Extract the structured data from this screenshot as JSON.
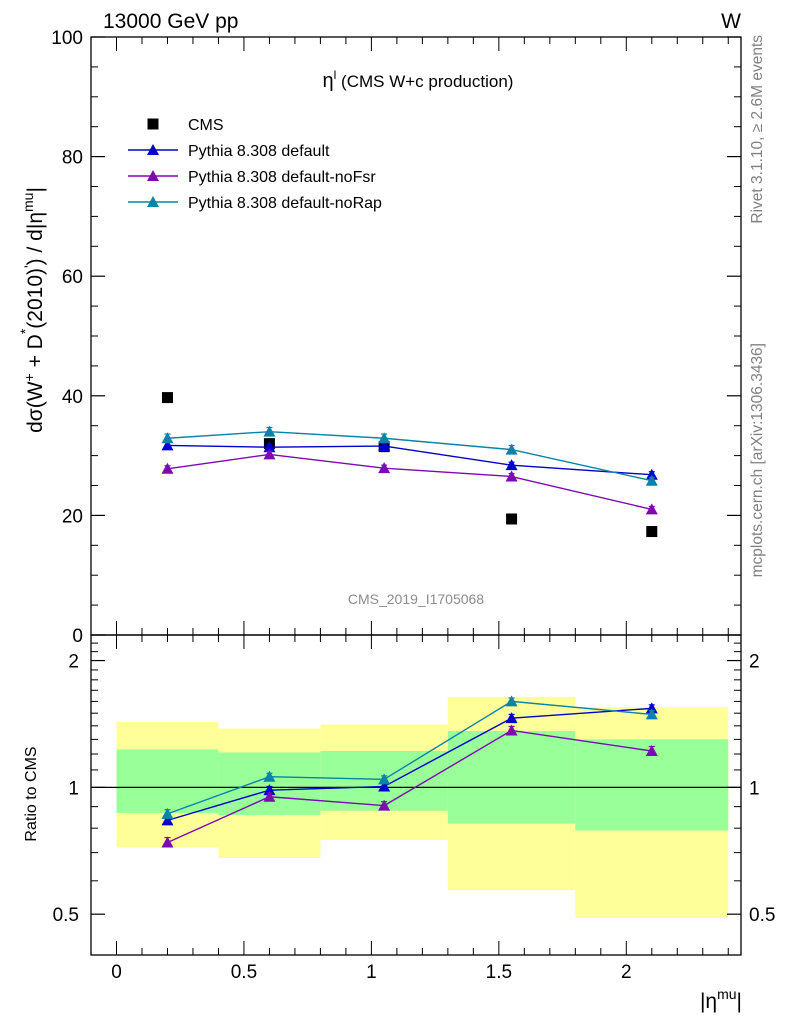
{
  "header": {
    "left": "13000 GeV pp",
    "right": "W"
  },
  "side_labels": {
    "rivet": "Rivet 3.1.10, ≥ 2.6M events",
    "mcplots": "mcplots.cern.ch [arXiv:1306.3436]"
  },
  "main_panel": {
    "title_symbol": "η",
    "title_sup": "l",
    "title_text": " (CMS W+c production)",
    "watermark": "CMS_2019_I1705068",
    "ylabel_d": "d",
    "ylabel_sigma": "σ(W",
    "ylabel_plus": "+",
    "ylabel_mid": " + D",
    "ylabel_star": "*",
    "ylabel_rest": "(2010)",
    "ylabel_end": ") / d|η",
    "ylabel_mu": "mu",
    "ylabel_bar": "|"
  },
  "ratio_panel": {
    "ylabel": "Ratio to CMS"
  },
  "x_axis": {
    "label_main": "|η",
    "label_sup": "mu",
    "label_end": "|"
  },
  "colors": {
    "data": "#000000",
    "default": "#0000cc",
    "noFsr": "#7b0ab4",
    "noRap": "#0a82aa",
    "band_outer": "#ffff99",
    "band_inner": "#99ff99"
  },
  "chart_data": [
    {
      "type": "scatter",
      "panel": "main",
      "xlim": [
        -0.1,
        2.45
      ],
      "ylim": [
        0,
        100
      ],
      "yticks": [
        0,
        20,
        40,
        60,
        80,
        100
      ],
      "legend": "top-left",
      "series": [
        {
          "name": "CMS",
          "style": "data",
          "x": [
            0.2,
            0.6,
            1.05,
            1.55,
            2.1
          ],
          "y": [
            39.7,
            32.0,
            31.5,
            19.4,
            17.3
          ],
          "err": [
            0,
            0,
            0,
            0,
            0
          ]
        },
        {
          "name": "Pythia 8.308 default",
          "style": "default",
          "x": [
            0.2,
            0.6,
            1.05,
            1.55,
            2.1
          ],
          "y": [
            31.7,
            31.4,
            31.6,
            28.4,
            26.8
          ],
          "err": [
            0.5,
            0.5,
            0.5,
            0.5,
            0.5
          ]
        },
        {
          "name": "Pythia 8.308 default-noFsr",
          "style": "noFsr",
          "x": [
            0.2,
            0.6,
            1.05,
            1.55,
            2.1
          ],
          "y": [
            27.8,
            30.2,
            27.9,
            26.5,
            21.0
          ],
          "err": [
            0.5,
            0.5,
            0.5,
            0.5,
            0.5
          ]
        },
        {
          "name": "Pythia 8.308 default-noRap",
          "style": "noRap",
          "x": [
            0.2,
            0.6,
            1.05,
            1.55,
            2.1
          ],
          "y": [
            32.9,
            34.0,
            32.9,
            31.0,
            25.8
          ],
          "err": [
            0.7,
            0.7,
            0.7,
            0.7,
            0.5
          ]
        }
      ]
    },
    {
      "type": "line",
      "panel": "ratio",
      "xlim": [
        -0.1,
        2.45
      ],
      "ylim": [
        0.4,
        2.3
      ],
      "ytick_labels": [
        "0.5",
        "1",
        "2"
      ],
      "xticks": [
        0,
        0.5,
        1,
        1.5,
        2
      ],
      "xtick_labels": [
        "0",
        "0.5",
        "1",
        "1.5",
        "2"
      ],
      "reference": 1,
      "bands": {
        "bin_edges": [
          0,
          0.4,
          0.8,
          1.3,
          1.8,
          2.4
        ],
        "outer_lo": [
          0.72,
          0.68,
          0.75,
          0.57,
          0.49
        ],
        "outer_hi": [
          1.43,
          1.38,
          1.41,
          1.64,
          1.55
        ],
        "inner_lo": [
          0.87,
          0.86,
          0.88,
          0.82,
          0.79
        ],
        "inner_hi": [
          1.23,
          1.21,
          1.22,
          1.36,
          1.3
        ]
      },
      "series": [
        {
          "name": "Pythia 8.308 default",
          "style": "default",
          "x": [
            0.2,
            0.6,
            1.05,
            1.55,
            2.1
          ],
          "y": [
            0.835,
            0.985,
            1.005,
            1.46,
            1.54
          ],
          "err": [
            0.02,
            0.02,
            0.02,
            0.03,
            0.03
          ]
        },
        {
          "name": "Pythia 8.308 default-noFsr",
          "style": "noFsr",
          "x": [
            0.2,
            0.6,
            1.05,
            1.55,
            2.1
          ],
          "y": [
            0.74,
            0.95,
            0.905,
            1.365,
            1.22
          ],
          "err": [
            0.02,
            0.02,
            0.02,
            0.03,
            0.03
          ]
        },
        {
          "name": "Pythia 8.308 default-noRap",
          "style": "noRap",
          "x": [
            0.2,
            0.6,
            1.05,
            1.55,
            2.1
          ],
          "y": [
            0.865,
            1.06,
            1.045,
            1.6,
            1.49
          ],
          "err": [
            0.02,
            0.02,
            0.02,
            0.03,
            0.03
          ]
        }
      ]
    }
  ]
}
